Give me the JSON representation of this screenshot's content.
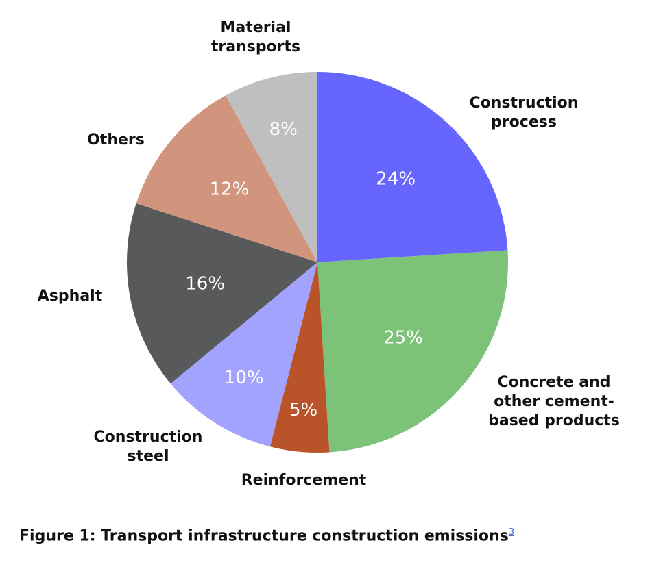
{
  "chart_data": {
    "type": "pie",
    "title": "Figure 1: Transport infrastructure construction emissions",
    "footnote_ref": "3",
    "slices": [
      {
        "label": [
          "Construction",
          "process"
        ],
        "value": 24,
        "display": "24%",
        "color": "#6666ff"
      },
      {
        "label": [
          "Concrete and",
          "other cement-",
          "based products"
        ],
        "value": 25,
        "display": "25%",
        "color": "#7cc278"
      },
      {
        "label": [
          "Reinforcement"
        ],
        "value": 5,
        "display": "5%",
        "color": "#b8532a"
      },
      {
        "label": [
          "Construction",
          "steel"
        ],
        "value": 10,
        "display": "10%",
        "color": "#a2a2ff"
      },
      {
        "label": [
          "Asphalt"
        ],
        "value": 16,
        "display": "16%",
        "color": "#58595b"
      },
      {
        "label": [
          "Others"
        ],
        "value": 12,
        "display": "12%",
        "color": "#d0957c"
      },
      {
        "label": [
          "Material",
          "transports"
        ],
        "value": 8,
        "display": "8%",
        "color": "#bfbfbf"
      }
    ]
  }
}
